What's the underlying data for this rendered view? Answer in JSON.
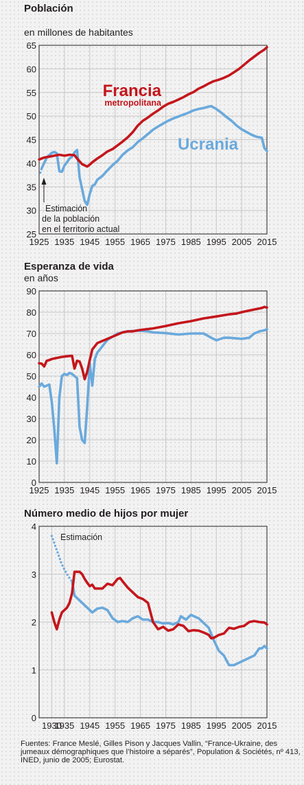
{
  "colors": {
    "francia": "#c4161c",
    "ucrania": "#6aa9dc",
    "grid": "#c8c8c8",
    "frame": "#231f20"
  },
  "chart_data": [
    {
      "type": "line",
      "title": "Población",
      "subtitle": "en millones de habitantes",
      "xlim": [
        1925,
        2015
      ],
      "ylim": [
        25,
        65
      ],
      "xticks": [
        1925,
        1935,
        1945,
        1955,
        1965,
        1975,
        1985,
        1995,
        2005,
        2015
      ],
      "yticks": [
        25,
        30,
        35,
        40,
        45,
        50,
        55,
        60,
        65
      ],
      "grid": true,
      "annotation": [
        "Estimación",
        "de la población",
        "en el territorio actual"
      ],
      "series": [
        {
          "name": "Francia",
          "name_line2": "metropolitana",
          "color": "#c4161c",
          "x": [
            1925,
            1927,
            1929,
            1931,
            1933,
            1935,
            1937,
            1939,
            1940,
            1942,
            1944,
            1945,
            1946,
            1948,
            1950,
            1952,
            1954,
            1956,
            1958,
            1960,
            1962,
            1964,
            1966,
            1968,
            1970,
            1972,
            1974,
            1976,
            1978,
            1980,
            1982,
            1984,
            1986,
            1988,
            1990,
            1992,
            1994,
            1996,
            1998,
            2000,
            2002,
            2004,
            2006,
            2008,
            2010,
            2012,
            2014,
            2015
          ],
          "y": [
            40.8,
            41.2,
            41.4,
            41.6,
            41.8,
            41.6,
            41.8,
            41.7,
            41.0,
            39.8,
            39.3,
            39.7,
            40.2,
            41.0,
            41.7,
            42.5,
            43.0,
            43.8,
            44.6,
            45.5,
            46.6,
            48.0,
            49.0,
            49.7,
            50.5,
            51.2,
            52.0,
            52.6,
            53.0,
            53.5,
            54.0,
            54.6,
            55.1,
            55.8,
            56.3,
            56.9,
            57.4,
            57.7,
            58.1,
            58.6,
            59.3,
            60.0,
            60.9,
            61.8,
            62.6,
            63.4,
            64.1,
            64.6
          ]
        },
        {
          "name": "Ucrania",
          "color": "#6aa9dc",
          "x": [
            1926,
            1928,
            1930,
            1931,
            1932,
            1933,
            1934,
            1935,
            1936,
            1937,
            1938,
            1939,
            1940,
            1941,
            1942,
            1943,
            1944,
            1945,
            1946,
            1947,
            1948,
            1950,
            1952,
            1954,
            1956,
            1958,
            1960,
            1962,
            1964,
            1966,
            1968,
            1970,
            1972,
            1974,
            1976,
            1978,
            1980,
            1982,
            1984,
            1986,
            1988,
            1990,
            1992,
            1993,
            1995,
            1997,
            1999,
            2001,
            2003,
            2005,
            2007,
            2009,
            2011,
            2013,
            2014,
            2015
          ],
          "y": [
            38.9,
            41.2,
            42.2,
            42.4,
            42.1,
            38.3,
            38.2,
            39.5,
            40.2,
            41.0,
            41.4,
            42.3,
            42.8,
            37.0,
            34.5,
            32.0,
            31.2,
            33.5,
            35.2,
            35.5,
            36.5,
            37.3,
            38.5,
            39.6,
            40.5,
            41.8,
            42.7,
            43.4,
            44.5,
            45.3,
            46.2,
            47.1,
            47.8,
            48.4,
            49.0,
            49.5,
            49.9,
            50.3,
            50.7,
            51.2,
            51.5,
            51.7,
            52.0,
            52.1,
            51.5,
            50.7,
            49.8,
            49.0,
            48.0,
            47.2,
            46.6,
            46.0,
            45.6,
            45.4,
            43.2,
            42.6
          ]
        },
        {
          "name": "Ucrania estimación",
          "color": "#6aa9dc",
          "style": "dotted",
          "x": [
            1925.5,
            1926,
            1927,
            1928,
            1929,
            1930,
            1931
          ],
          "y": [
            38.0,
            38.9,
            40.0,
            41.0,
            41.7,
            42.1,
            42.4
          ]
        }
      ]
    },
    {
      "type": "line",
      "title": "Esperanza de vida",
      "subtitle": "en años",
      "xlim": [
        1925,
        2015
      ],
      "ylim": [
        0,
        90
      ],
      "xticks": [
        1925,
        1935,
        1945,
        1955,
        1965,
        1975,
        1985,
        1995,
        2005,
        2015
      ],
      "yticks": [
        0,
        10,
        20,
        30,
        40,
        50,
        60,
        70,
        80,
        90
      ],
      "grid": true,
      "series": [
        {
          "name": "Francia",
          "color": "#c4161c",
          "x": [
            1925,
            1926,
            1927,
            1928,
            1929,
            1930,
            1932,
            1934,
            1936,
            1938,
            1939,
            1940,
            1941,
            1942,
            1943,
            1944,
            1945,
            1946,
            1947,
            1948,
            1950,
            1952,
            1954,
            1956,
            1958,
            1960,
            1962,
            1964,
            1966,
            1970,
            1975,
            1980,
            1985,
            1990,
            1995,
            2000,
            2003,
            2004,
            2006,
            2010,
            2013,
            2014,
            2015
          ],
          "y": [
            56.0,
            55.8,
            54.5,
            57.2,
            57.5,
            58.0,
            58.5,
            59.0,
            59.3,
            59.5,
            53.5,
            57.2,
            56.8,
            53.5,
            48.5,
            52.0,
            57.5,
            62.5,
            64.0,
            65.5,
            66.5,
            67.5,
            68.5,
            69.5,
            70.5,
            71.0,
            71.0,
            71.5,
            71.8,
            72.4,
            73.5,
            74.8,
            75.8,
            77.1,
            78.0,
            79.0,
            79.4,
            79.7,
            80.3,
            81.3,
            82.0,
            82.5,
            82.2
          ]
        },
        {
          "name": "Ucrania",
          "color": "#6aa9dc",
          "x": [
            1925,
            1926,
            1927,
            1928,
            1929,
            1930,
            1931,
            1932,
            1933,
            1934,
            1935,
            1936,
            1937,
            1938,
            1939,
            1940,
            1941,
            1942,
            1943,
            1944,
            1945,
            1946,
            1947,
            1948,
            1949,
            1950,
            1952,
            1954,
            1956,
            1958,
            1960,
            1962,
            1965,
            1968,
            1970,
            1975,
            1980,
            1985,
            1990,
            1993,
            1995,
            1998,
            2000,
            2005,
            2008,
            2010,
            2012,
            2014,
            2015
          ],
          "y": [
            45.0,
            46.5,
            45.0,
            45.5,
            46.0,
            38.0,
            25.0,
            9.0,
            40.0,
            50.0,
            51.0,
            50.5,
            51.5,
            51.0,
            50.0,
            49.0,
            26.0,
            20.0,
            18.5,
            35.5,
            56.0,
            45.5,
            58.0,
            61.0,
            62.5,
            64.0,
            67.0,
            68.5,
            70.0,
            70.5,
            71.0,
            71.2,
            71.3,
            71.0,
            70.5,
            70.2,
            69.5,
            70.0,
            70.0,
            68.0,
            66.8,
            68.0,
            68.0,
            67.5,
            68.0,
            70.0,
            71.0,
            71.5,
            72.0
          ]
        }
      ]
    },
    {
      "type": "line",
      "title": "Número medio de hijos por mujer",
      "xlim": [
        1925,
        2015
      ],
      "ylim": [
        0,
        4
      ],
      "xticks": [
        1930,
        1935,
        1945,
        1955,
        1965,
        1975,
        1985,
        1995,
        2005,
        2015
      ],
      "yticks": [
        0,
        1,
        2,
        3,
        4
      ],
      "grid": true,
      "annotation": [
        "Estimación"
      ],
      "series": [
        {
          "name": "Francia",
          "color": "#c4161c",
          "x": [
            1930,
            1931,
            1932,
            1933,
            1934,
            1935,
            1936,
            1937,
            1938,
            1939,
            1940,
            1941,
            1942,
            1943,
            1944,
            1945,
            1946,
            1947,
            1948,
            1950,
            1952,
            1954,
            1956,
            1957,
            1958,
            1960,
            1962,
            1964,
            1966,
            1968,
            1970,
            1972,
            1974,
            1976,
            1978,
            1980,
            1982,
            1984,
            1986,
            1988,
            1990,
            1992,
            1993,
            1994,
            1996,
            1998,
            2000,
            2002,
            2004,
            2006,
            2008,
            2010,
            2012,
            2014,
            2015
          ],
          "y": [
            2.2,
            2.0,
            1.85,
            2.05,
            2.2,
            2.25,
            2.3,
            2.4,
            2.6,
            3.05,
            3.05,
            3.05,
            3.0,
            2.9,
            2.82,
            2.75,
            2.78,
            2.7,
            2.7,
            2.7,
            2.8,
            2.77,
            2.9,
            2.92,
            2.85,
            2.72,
            2.62,
            2.52,
            2.48,
            2.4,
            2.0,
            1.85,
            1.9,
            1.82,
            1.85,
            1.95,
            1.92,
            1.81,
            1.83,
            1.82,
            1.78,
            1.73,
            1.66,
            1.67,
            1.73,
            1.76,
            1.88,
            1.86,
            1.9,
            1.92,
            2.0,
            2.02,
            2.0,
            1.99,
            1.95
          ]
        },
        {
          "name": "Ucrania",
          "color": "#6aa9dc",
          "x": [
            1938,
            1939,
            1940,
            1942,
            1944,
            1946,
            1948,
            1950,
            1952,
            1954,
            1956,
            1958,
            1960,
            1962,
            1964,
            1966,
            1968,
            1970,
            1972,
            1974,
            1976,
            1978,
            1980,
            1981,
            1983,
            1985,
            1987,
            1988,
            1990,
            1992,
            1994,
            1996,
            1998,
            2000,
            2002,
            2004,
            2006,
            2008,
            2010,
            2012,
            2013,
            2014,
            2015
          ],
          "y": [
            2.85,
            2.55,
            2.5,
            2.4,
            2.3,
            2.2,
            2.28,
            2.3,
            2.25,
            2.08,
            2.0,
            2.02,
            2.0,
            2.08,
            2.12,
            2.05,
            2.05,
            2.0,
            2.0,
            1.97,
            1.98,
            1.95,
            2.0,
            2.12,
            2.05,
            2.15,
            2.1,
            2.08,
            1.98,
            1.88,
            1.62,
            1.4,
            1.3,
            1.1,
            1.1,
            1.15,
            1.2,
            1.25,
            1.3,
            1.45,
            1.45,
            1.5,
            1.45
          ]
        },
        {
          "name": "Ucrania estimación",
          "color": "#6aa9dc",
          "style": "dotted",
          "x": [
            1930,
            1931,
            1932,
            1933,
            1934,
            1935,
            1936,
            1937,
            1938
          ],
          "y": [
            3.8,
            3.65,
            3.5,
            3.35,
            3.2,
            3.1,
            3.0,
            2.92,
            2.85
          ]
        }
      ]
    }
  ],
  "sources": "Fuentes: France Meslé, Gilles Pison y Jacques Vallin, “France-Ukraine, des jumeaux démographiques que l’histoire a séparés”, Population & Sociétés, nº 413, INED, junio de 2005; Eurostat."
}
